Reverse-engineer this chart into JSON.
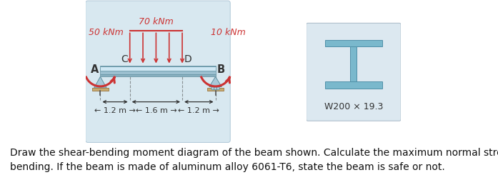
{
  "bg_color": "#d8e8f0",
  "beam_color_main": "#9bbfcf",
  "beam_color_top": "#b8d4e0",
  "beam_color_highlight": "#d0e8f4",
  "support_color": "#c8aa70",
  "arrow_color": "#cc3333",
  "text_color": "#333333",
  "label_color": "#cc3333",
  "ibeam_color": "#7ab8cc",
  "ibeam_bg": "#dce8f0",
  "label_A": "A",
  "label_B": "B",
  "label_C": "C",
  "label_D": "D",
  "moment_left": "50 kNm",
  "moment_right": "10 kNm",
  "dist_load": "70 kNm",
  "dim1": "← 1.2 m →",
  "dim2": "← 1.6 m →",
  "dim3": "← 1.2 m →",
  "section_label": "W200 × 19.3",
  "caption": "Draw the shear-bending moment diagram of the beam shown. Calculate the maximum normal stress due to\nbending. If the beam is made of aluminum alloy 6061-T6, state the beam is safe or not.",
  "caption_fontsize": 10.0,
  "n_dist_arrows": 5
}
